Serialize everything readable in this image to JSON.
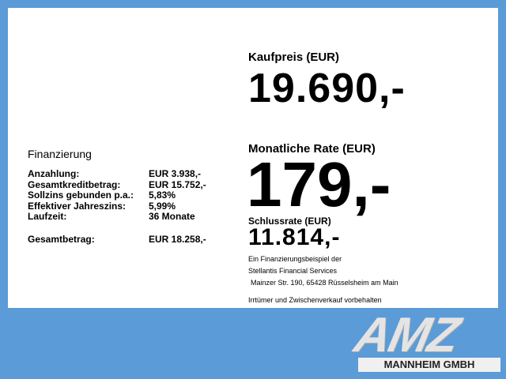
{
  "price": {
    "label": "Kaufpreis (EUR)",
    "value": "19.690,-"
  },
  "monthly": {
    "label": "Monatliche Rate (EUR)",
    "value": "179,-"
  },
  "final": {
    "label": "Schlussrate (EUR)",
    "value": "11.814,-"
  },
  "financing": {
    "title": "Finanzierung",
    "rows": [
      {
        "label": "Anzahlung:",
        "value": "EUR 3.938,-"
      },
      {
        "label": "Gesamtkreditbetrag:",
        "value": "EUR 15.752,-"
      },
      {
        "label": "Sollzins gebunden p.a.:",
        "value": "5,83%"
      },
      {
        "label": "Effektiver Jahreszins:",
        "value": "5,99%"
      },
      {
        "label": "Laufzeit:",
        "value": "36 Monate"
      }
    ],
    "total": {
      "label": "Gesamtbetrag:",
      "value": "EUR 18.258,-"
    }
  },
  "disclaimer": {
    "line1": "Ein Finanzierungsbeispiel der",
    "line2": "Stellantis Financial Services",
    "line3": "Mainzer Str. 190, 65428 Rüsselsheim am Main",
    "line4": "Irrtümer und Zwischenverkauf vorbehalten"
  },
  "logo": {
    "text": "AMZ",
    "subtitle": "MANNHEIM GMBH"
  },
  "colors": {
    "background": "#5b9bd7",
    "panel": "#ffffff"
  }
}
